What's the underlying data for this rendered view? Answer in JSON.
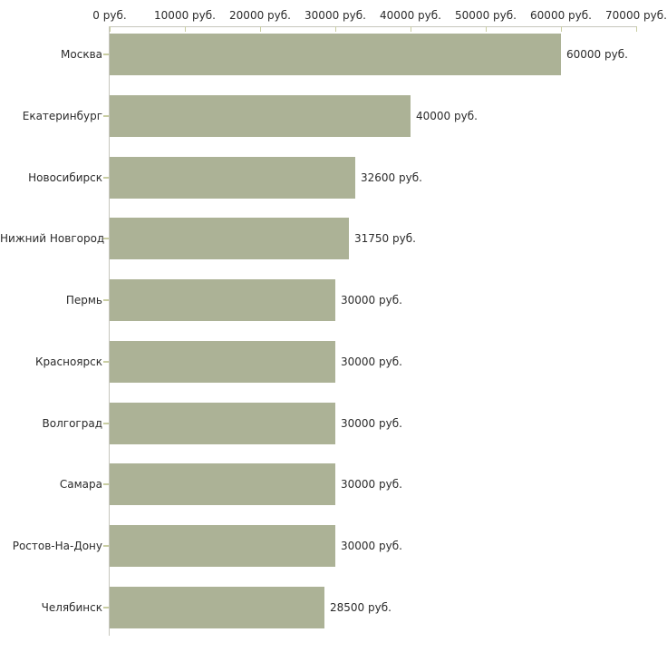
{
  "chart_data": {
    "type": "bar",
    "orientation": "horizontal",
    "title": "",
    "xlabel": "",
    "ylabel": "",
    "grid": false,
    "legend": "none",
    "categories": [
      "Москва",
      "Екатеринбург",
      "Новосибирск",
      "Нижний Новгород",
      "Пермь",
      "Красноярск",
      "Волгоград",
      "Самара",
      "Ростов-На-Дону",
      "Челябинск"
    ],
    "values": [
      60000,
      40000,
      32600,
      31750,
      30000,
      30000,
      30000,
      30000,
      30000,
      28500
    ],
    "value_labels": [
      "60000 руб.",
      "40000 руб.",
      "32600 руб.",
      "31750 руб.",
      "30000 руб.",
      "30000 руб.",
      "30000 руб.",
      "30000 руб.",
      "30000 руб.",
      "28500 руб."
    ],
    "x_axis": {
      "position": "top",
      "min": 0,
      "max": 70000,
      "tick_values": [
        0,
        10000,
        20000,
        30000,
        40000,
        50000,
        60000,
        70000
      ],
      "tick_labels": [
        "0 руб.",
        "10000 руб.",
        "20000 руб.",
        "30000 руб.",
        "40000 руб.",
        "50000 руб.",
        "60000 руб.",
        "70000 руб."
      ]
    },
    "colors": {
      "bar": "#acb296",
      "axis_line": "#c6c6bd",
      "tick_mark": "#c9cda2",
      "text": "#2b2b2b",
      "background": "#ffffff"
    }
  }
}
